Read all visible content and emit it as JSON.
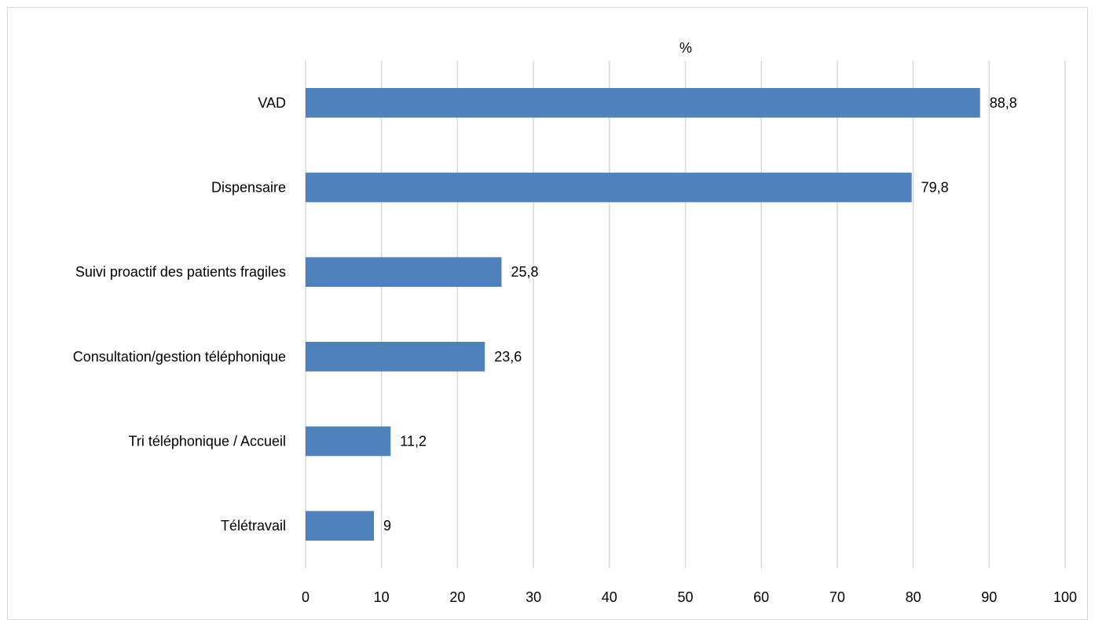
{
  "chart_data": {
    "type": "bar",
    "orientation": "horizontal",
    "title": "%",
    "xlabel": "",
    "ylabel": "",
    "categories": [
      "VAD",
      "Dispensaire",
      "Suivi proactif des patients fragiles",
      "Consultation/gestion téléphonique",
      "Tri téléphonique / Accueil",
      "Télétravail"
    ],
    "values": [
      88.8,
      79.8,
      25.8,
      23.6,
      11.2,
      9
    ],
    "value_labels": [
      "88,8",
      "79,8",
      "25,8",
      "23,6",
      "11,2",
      "9"
    ],
    "xlim": [
      0,
      100
    ],
    "xticks": [
      0,
      10,
      20,
      30,
      40,
      50,
      60,
      70,
      80,
      90,
      100
    ],
    "grid": "vertical",
    "legend": "none",
    "colors": {
      "bar": "#4f81bd",
      "grid": "#d9d9d9",
      "text": "#000000",
      "frame": "#d9d9d9"
    }
  }
}
